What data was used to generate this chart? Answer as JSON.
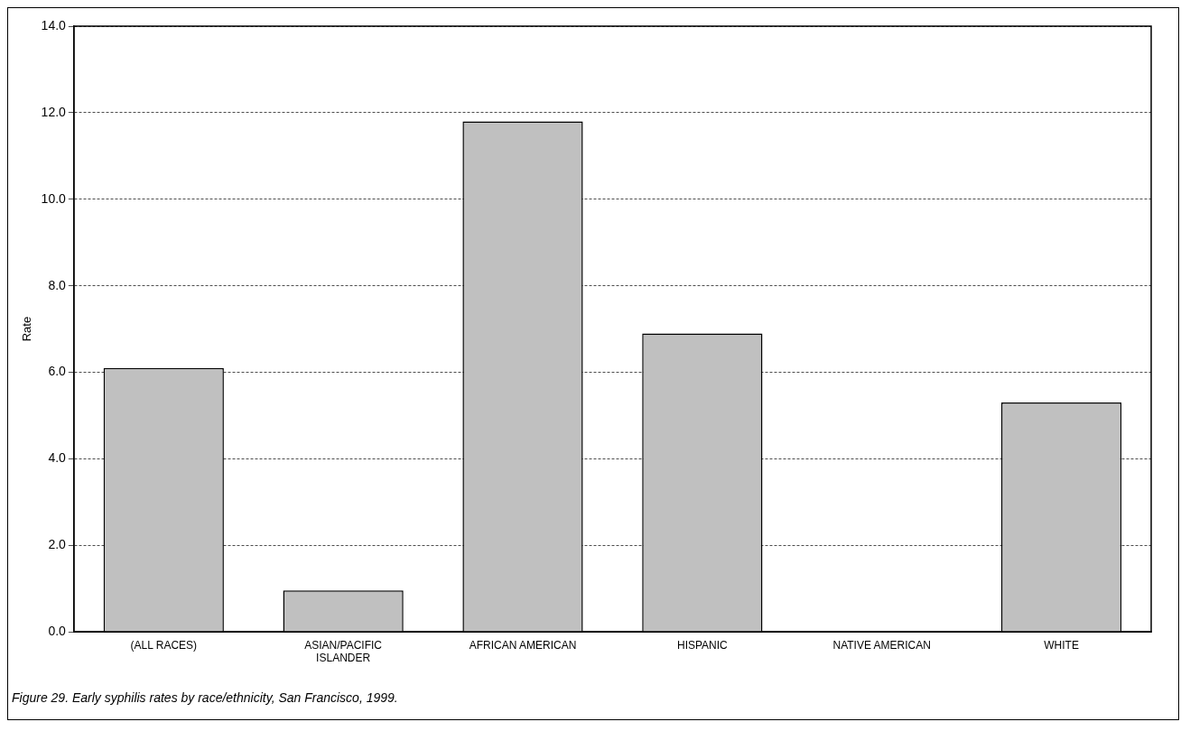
{
  "chart_data": {
    "type": "bar",
    "ylabel": "Rate",
    "categories": [
      "(ALL RACES)",
      "ASIAN/PACIFIC\nISLANDER",
      "AFRICAN AMERICAN",
      "HISPANIC",
      "NATIVE AMERICAN",
      "WHITE"
    ],
    "values": [
      6.1,
      0.96,
      11.8,
      6.9,
      0,
      5.3
    ],
    "color": "#c0c0c0",
    "ylim": [
      0,
      14
    ],
    "yticks": [
      {
        "value": 0,
        "label": "0.0"
      },
      {
        "value": 2,
        "label": "2.0"
      },
      {
        "value": 4,
        "label": "4.0"
      },
      {
        "value": 6,
        "label": "6.0"
      },
      {
        "value": 8,
        "label": "8.0"
      },
      {
        "value": 10,
        "label": "10.0"
      },
      {
        "value": 12,
        "label": "12.0"
      },
      {
        "value": 14,
        "label": "14.0"
      }
    ],
    "grid": "y",
    "legend": false,
    "annotations": [
      "Figure 29.  Early syphilis rates by race/ethnicity, San Francisco, 1999."
    ]
  }
}
